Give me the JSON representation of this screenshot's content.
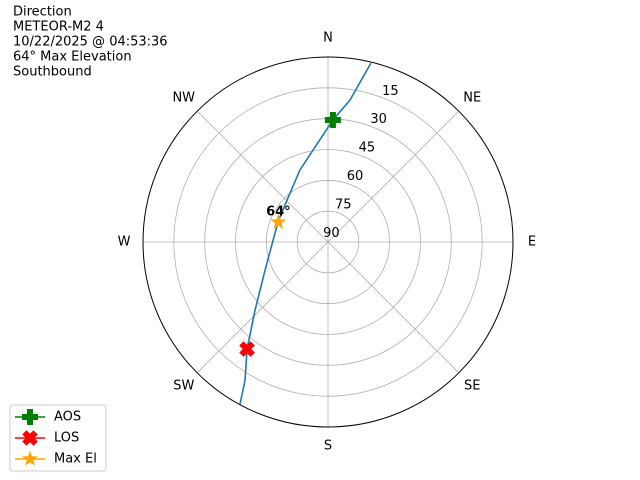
{
  "chart_data": {
    "type": "polar",
    "title_lines": [
      "Direction",
      "METEOR-M2 4",
      "10/22/2025 @ 04:53:36",
      "64° Max Elevation",
      "Southbound"
    ],
    "theta_direction": "clockwise",
    "theta_zero": "N",
    "thetaticks": [
      {
        "value": 0,
        "label": "N"
      },
      {
        "value": 45,
        "label": "NE"
      },
      {
        "value": 90,
        "label": "E"
      },
      {
        "value": 135,
        "label": "SE"
      },
      {
        "value": 180,
        "label": "S"
      },
      {
        "value": 225,
        "label": "SW"
      },
      {
        "value": 270,
        "label": "W"
      },
      {
        "value": 315,
        "label": "NW"
      }
    ],
    "rlim": [
      90,
      0
    ],
    "rticks": [
      90,
      75,
      60,
      45,
      30,
      15
    ],
    "grid": true,
    "legend": "lower left",
    "series": [
      {
        "color": "#1f77b4",
        "marker": "line",
        "theta": [
          13.5,
          8.8,
          2.3,
          338.7,
          310.7,
          291.8,
          246,
          227,
          217.1,
          211,
          208.5
        ],
        "r": [
          0.5,
          20.1,
          30.6,
          52.4,
          62.4,
          63.8,
          56.5,
          41.5,
          24.7,
          11.7,
          0.3
        ]
      },
      {
        "name": "AOS",
        "color": "green",
        "marker": "plus",
        "theta": [
          2.3
        ],
        "r": [
          30.6
        ]
      },
      {
        "name": "LOS",
        "color": "red",
        "marker": "x",
        "theta": [
          217.1
        ],
        "r": [
          24.7
        ]
      },
      {
        "name": "Max El",
        "color": "orange",
        "marker": "star",
        "theta": [
          291.8
        ],
        "r": [
          64
        ]
      }
    ],
    "annotations": [
      {
        "text": "64°",
        "theta": 291.8,
        "r": 64
      }
    ]
  }
}
